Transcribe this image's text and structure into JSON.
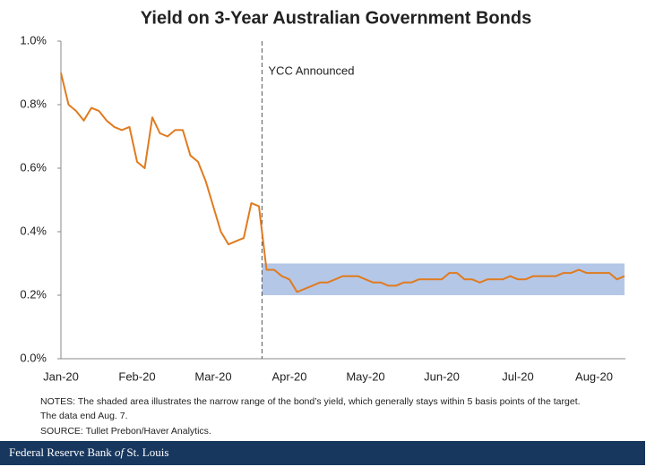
{
  "chart_data": {
    "type": "line",
    "title": "Yield on 3-Year Australian Government Bonds",
    "categories": [
      "Jan-20",
      null,
      null,
      null,
      null,
      null,
      null,
      null,
      null,
      null,
      "Feb-20",
      null,
      null,
      null,
      null,
      null,
      null,
      null,
      null,
      null,
      "Mar-20",
      null,
      null,
      null,
      null,
      null,
      null,
      null,
      null,
      null,
      "Apr-20",
      null,
      null,
      null,
      null,
      null,
      null,
      null,
      null,
      null,
      "May-20",
      null,
      null,
      null,
      null,
      null,
      null,
      null,
      null,
      null,
      "Jun-20",
      null,
      null,
      null,
      null,
      null,
      null,
      null,
      null,
      null,
      "Jul-20",
      null,
      null,
      null,
      null,
      null,
      null,
      null,
      null,
      null,
      "Aug-20",
      null,
      null,
      null,
      null
    ],
    "series": [
      {
        "color": "#e07b1f",
        "values": [
          0.9,
          0.8,
          0.78,
          0.75,
          0.79,
          0.78,
          0.75,
          0.73,
          0.72,
          0.73,
          0.62,
          0.6,
          0.76,
          0.71,
          0.7,
          0.72,
          0.72,
          0.64,
          0.62,
          0.56,
          0.48,
          0.4,
          0.36,
          0.37,
          0.38,
          0.49,
          0.48,
          0.28,
          0.28,
          0.26,
          0.25,
          0.21,
          0.22,
          0.23,
          0.24,
          0.24,
          0.25,
          0.26,
          0.26,
          0.26,
          0.25,
          0.24,
          0.24,
          0.23,
          0.23,
          0.24,
          0.24,
          0.25,
          0.25,
          0.25,
          0.25,
          0.27,
          0.27,
          0.25,
          0.25,
          0.24,
          0.25,
          0.25,
          0.25,
          0.26,
          0.25,
          0.25,
          0.26,
          0.26,
          0.26,
          0.26,
          0.27,
          0.27,
          0.28,
          0.27,
          0.27,
          0.27,
          0.27,
          0.25,
          0.26
        ]
      }
    ],
    "ylim": [
      0,
      1.0
    ],
    "yticks": [
      {
        "value": 0,
        "label": "0.0%"
      },
      {
        "value": 0.2,
        "label": "0.2%"
      },
      {
        "value": 0.4,
        "label": "0.4%"
      },
      {
        "value": 0.6,
        "label": "0.6%"
      },
      {
        "value": 0.8,
        "label": "0.8%"
      },
      {
        "value": 1.0,
        "label": "1.0%"
      }
    ],
    "shaded_range": {
      "from": 0.2,
      "to": 0.3,
      "color": "#b4c7e7"
    },
    "annotation": {
      "text": "YCC Announced",
      "x": 26.4
    },
    "notes": [
      "NOTES: The shaded area illustrates the narrow range of the bond’s yield, which generally stays within 5 basis points of the target.",
      "The data end Aug. 7.",
      "SOURCE: Tullet Prebon/Haver Analytics."
    ],
    "footer": [
      "Federal Reserve Bank ",
      "of",
      " St. Louis"
    ]
  }
}
